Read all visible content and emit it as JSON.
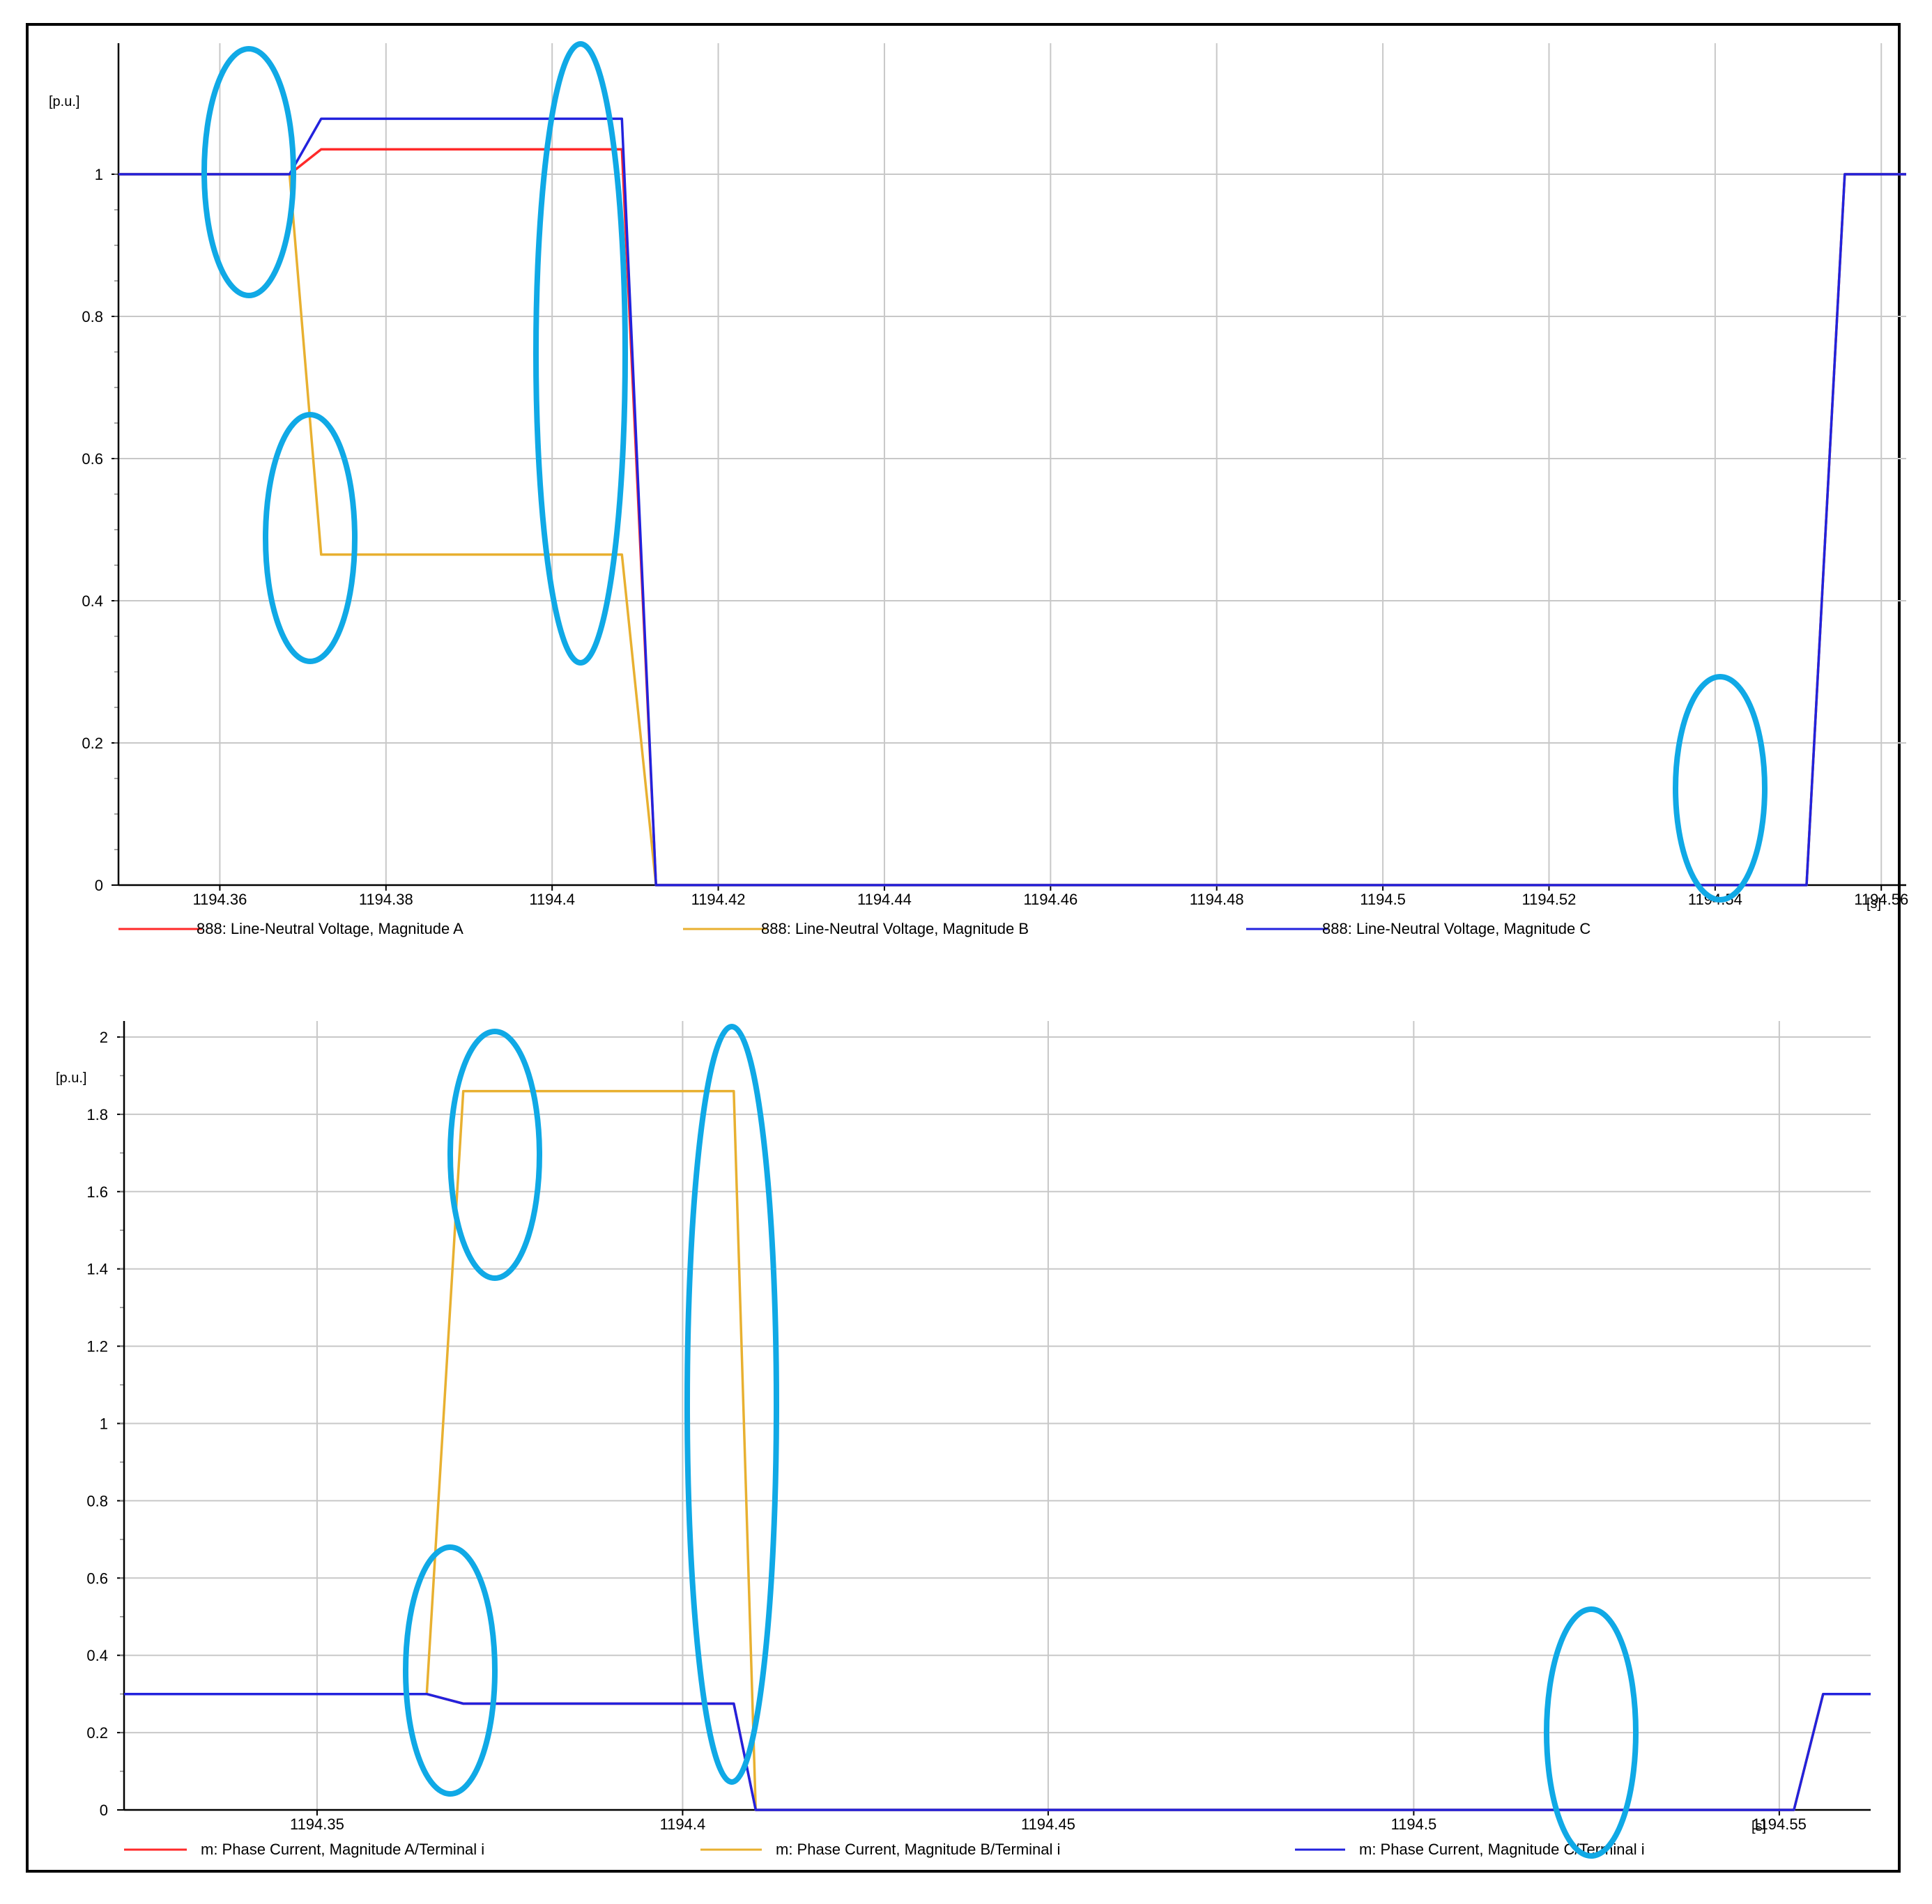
{
  "colors": {
    "phase_a": "#ff2a2a",
    "phase_b": "#e8b030",
    "phase_c": "#2222dd",
    "grid": "#c8c8c8",
    "highlight": "#10a9e6"
  },
  "chart_data": [
    {
      "type": "line",
      "ylabel": "[p.u.]",
      "xunit": "[s]",
      "xlim": [
        1194.3478,
        1194.563
      ],
      "ylim": [
        0,
        1.0
      ],
      "x_ticks": [
        "1194.36",
        "1194.38",
        "1194.4",
        "1194.42",
        "1194.44",
        "1194.46",
        "1194.48",
        "1194.5",
        "1194.52",
        "1194.54",
        "1194.56"
      ],
      "y_ticks": [
        "0",
        "0.2",
        "0.4",
        "0.6",
        "0.8",
        "1"
      ],
      "y_minor_step": 0.05,
      "grid": true,
      "legend_position": "bottom",
      "series": [
        {
          "name": "888: Line-Neutral Voltage, Magnitude A",
          "color": "#ff2a2a",
          "x": [
            1194.3478,
            1194.3684,
            1194.3722,
            1194.4084,
            1194.4125,
            1194.551,
            1194.5556,
            1194.563
          ],
          "y": [
            1.0,
            1.0,
            1.035,
            1.035,
            0.0,
            0.0,
            1.0,
            1.0
          ]
        },
        {
          "name": "888: Line-Neutral Voltage, Magnitude B",
          "color": "#e8b030",
          "x": [
            1194.3478,
            1194.3684,
            1194.3722,
            1194.4084,
            1194.4125,
            1194.551,
            1194.5556,
            1194.563
          ],
          "y": [
            1.0,
            1.0,
            0.465,
            0.465,
            0.0,
            0.0,
            1.0,
            1.0
          ]
        },
        {
          "name": "888: Line-Neutral Voltage, Magnitude C",
          "color": "#2222dd",
          "x": [
            1194.3478,
            1194.3684,
            1194.3722,
            1194.4084,
            1194.4125,
            1194.551,
            1194.5556,
            1194.563
          ],
          "y": [
            1.0,
            1.0,
            1.078,
            1.078,
            0.0,
            0.0,
            1.0,
            1.0
          ]
        }
      ]
    },
    {
      "type": "line",
      "ylabel": "[p.u.]",
      "xunit": "[s]",
      "xlim": [
        1194.3236,
        1194.5625
      ],
      "ylim": [
        0,
        2.0
      ],
      "x_ticks": [
        "1194.35",
        "1194.4",
        "1194.45",
        "1194.5",
        "1194.55"
      ],
      "y_ticks": [
        "0",
        "0.2",
        "0.4",
        "0.6",
        "0.8",
        "1",
        "1.2",
        "1.4",
        "1.6",
        "1.8",
        "2"
      ],
      "y_minor_step": 0.1,
      "grid": true,
      "legend_position": "bottom",
      "series": [
        {
          "name": "m: Phase Current, Magnitude A/Terminal i",
          "color": "#ff2a2a",
          "x": [
            1194.3236,
            1194.365,
            1194.37,
            1194.407,
            1194.41,
            1194.552,
            1194.556,
            1194.5625
          ],
          "y": [
            0.3,
            0.3,
            0.275,
            0.275,
            0.0,
            0.0,
            0.3,
            0.3
          ]
        },
        {
          "name": "m: Phase Current, Magnitude B/Terminal i",
          "color": "#e8b030",
          "x": [
            1194.3236,
            1194.365,
            1194.37,
            1194.407,
            1194.41,
            1194.552,
            1194.556,
            1194.5625
          ],
          "y": [
            0.3,
            0.3,
            1.86,
            1.86,
            0.0,
            0.0,
            0.3,
            0.3
          ]
        },
        {
          "name": "m: Phase Current, Magnitude C/Terminal i",
          "color": "#2222dd",
          "x": [
            1194.3236,
            1194.365,
            1194.37,
            1194.407,
            1194.41,
            1194.552,
            1194.556,
            1194.5625
          ],
          "y": [
            0.3,
            0.3,
            0.275,
            0.275,
            0.0,
            0.0,
            0.3,
            0.3
          ]
        }
      ]
    }
  ]
}
